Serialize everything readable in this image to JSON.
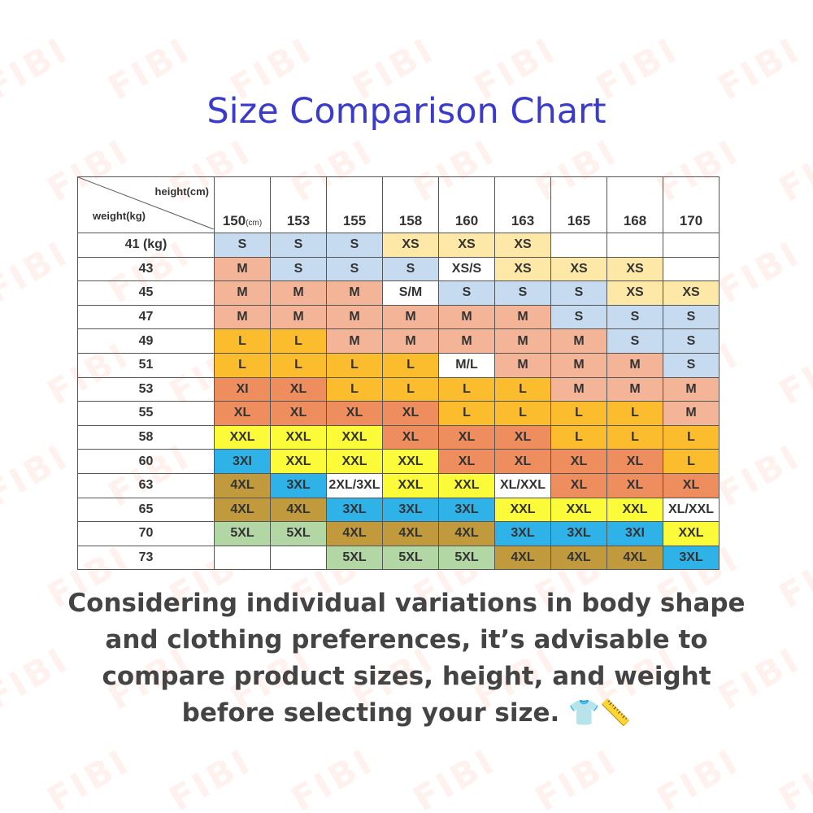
{
  "watermark": "FIBI",
  "header": {
    "title": "Size Comparison Chart"
  },
  "table": {
    "corner": {
      "top": "height(cm)",
      "bottom": "weight(kg)"
    },
    "columns": [
      {
        "text": "150",
        "unit": "(cm)"
      },
      {
        "text": "153"
      },
      {
        "text": "155"
      },
      {
        "text": "158"
      },
      {
        "text": "160"
      },
      {
        "text": "163"
      },
      {
        "text": "165"
      },
      {
        "text": "168"
      },
      {
        "text": "170"
      }
    ],
    "rows": [
      {
        "weight": "41 (kg)",
        "cells": [
          "S",
          "S",
          "S",
          "XS",
          "XS",
          "XS",
          null,
          null,
          null
        ]
      },
      {
        "weight": "43",
        "cells": [
          "M",
          "S",
          "S",
          "S",
          "XS/S",
          "XS",
          "XS",
          "XS",
          null
        ]
      },
      {
        "weight": "45",
        "cells": [
          "M",
          "M",
          "M",
          "S/M",
          "S",
          "S",
          "S",
          "XS",
          "XS"
        ]
      },
      {
        "weight": "47",
        "cells": [
          "M",
          "M",
          "M",
          "M",
          "M",
          "M",
          "S",
          "S",
          "S"
        ]
      },
      {
        "weight": "49",
        "cells": [
          "L",
          "L",
          "M",
          "M",
          "M",
          "M",
          "M",
          "S",
          "S"
        ]
      },
      {
        "weight": "51",
        "cells": [
          "L",
          "L",
          "L",
          "L",
          "M/L",
          "M",
          "M",
          "M",
          "S"
        ]
      },
      {
        "weight": "53",
        "cells": [
          "XI",
          "XL",
          "L",
          "L",
          "L",
          "L",
          "M",
          "M",
          "M"
        ]
      },
      {
        "weight": "55",
        "cells": [
          "XL",
          "XL",
          "XL",
          "XL",
          "L",
          "L",
          "L",
          "L",
          "M"
        ]
      },
      {
        "weight": "58",
        "cells": [
          "XXL",
          "XXL",
          "XXL",
          "XL",
          "XL",
          "XL",
          "L",
          "L",
          "L"
        ]
      },
      {
        "weight": "60",
        "cells": [
          "3XI",
          "XXL",
          "XXL",
          "XXL",
          "XL",
          "XL",
          "XL",
          "XL",
          "L"
        ]
      },
      {
        "weight": "63",
        "cells": [
          "4XL",
          "3XL",
          "2XL/3XL",
          "XXL",
          "XXL",
          "XL/XXL",
          "XL",
          "XL",
          "XL"
        ]
      },
      {
        "weight": "65",
        "cells": [
          "4XL",
          "4XL",
          "3XL",
          "3XL",
          "3XL",
          "XXL",
          "XXL",
          "XXL",
          "XL/XXL"
        ]
      },
      {
        "weight": "70",
        "cells": [
          "5XL",
          "5XL",
          "4XL",
          "4XL",
          "4XL",
          "3XL",
          "3XL",
          "3XI",
          "XXL"
        ]
      },
      {
        "weight": "73",
        "cells": [
          null,
          null,
          "5XL",
          "5XL",
          "5XL",
          "4XL",
          "4XL",
          "4XL",
          "3XL"
        ]
      }
    ],
    "colors": {
      "XS": "#fde8a8",
      "S": "#c6dbf0",
      "M": "#f4b497",
      "L": "#fbbd2e",
      "XL": "#ee8d5e",
      "XI": "#ee8d5e",
      "XXL": "#fbfb3a",
      "3XL": "#2eb2e8",
      "3XI": "#2eb2e8",
      "4XL": "#c29a3e",
      "5XL": "#b3d6a5"
    }
  },
  "note": {
    "lines": [
      "Considering individual variations in body shape",
      "and clothing preferences, it’s advisable to",
      "compare product sizes, height, and weight",
      "before selecting your size. 👕📏"
    ]
  }
}
